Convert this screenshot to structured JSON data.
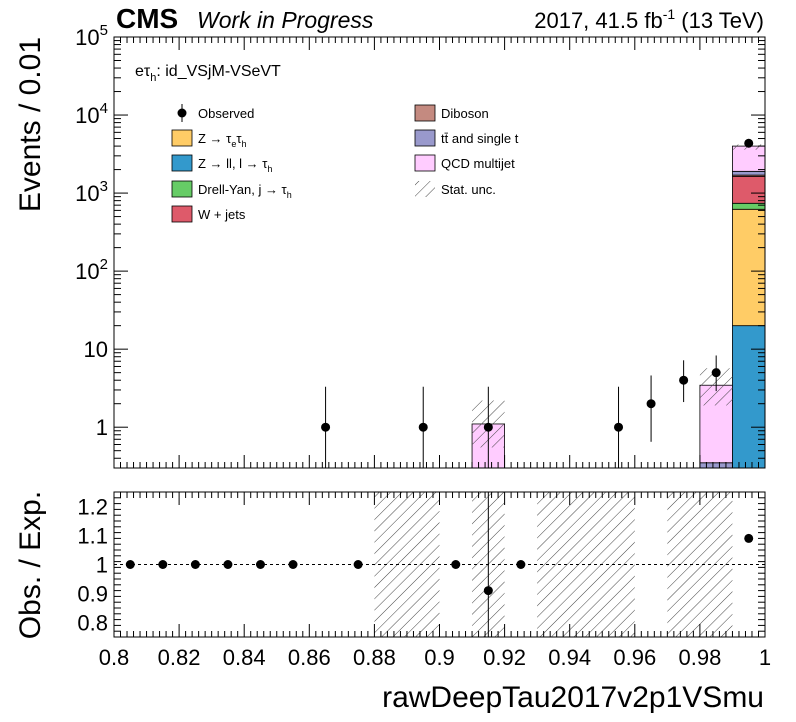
{
  "header": {
    "cms": "CMS",
    "status": "Work in Progress",
    "lumi_prefix": "2017, 41.5 fb",
    "lumi_exp": "-1",
    "lumi_suffix": " (13 TeV)"
  },
  "channel": {
    "particle": "eτ",
    "sub": "h",
    "rest": ": id_VSjM-VSeVT"
  },
  "colors": {
    "ztt": "#ffcc66",
    "zll": "#3399cc",
    "jfakes": "#66cc66",
    "wjets": "#de5a6a",
    "diboson": "#c48a80",
    "ttbar": "#9999cc",
    "qcd": "#ffccff",
    "data": "#000000"
  },
  "legend": [
    {
      "key": "data",
      "type": "marker",
      "text": "Observed",
      "sub": "",
      "tail": ""
    },
    {
      "key": "ztt",
      "type": "box",
      "text": "Z → τ",
      "sub": "e",
      "tail": "τ",
      "sub2": "h"
    },
    {
      "key": "zll",
      "type": "box",
      "text": "Z → ll, l → τ",
      "sub": "h",
      "tail": ""
    },
    {
      "key": "jfakes",
      "type": "box",
      "text": "Drell-Yan, j → τ",
      "sub": "h",
      "tail": ""
    },
    {
      "key": "wjets",
      "type": "box",
      "text": "W + jets",
      "sub": "",
      "tail": ""
    },
    {
      "key": "diboson",
      "type": "box",
      "text": "Diboson",
      "sub": "",
      "tail": ""
    },
    {
      "key": "ttbar",
      "type": "box",
      "text": "tt̄ and single t",
      "sub": "",
      "tail": ""
    },
    {
      "key": "qcd",
      "type": "box",
      "text": "QCD multijet",
      "sub": "",
      "tail": ""
    },
    {
      "key": "unc",
      "type": "hatch",
      "text": "Stat. unc.",
      "sub": "",
      "tail": ""
    }
  ],
  "chart_data": [
    {
      "type": "bar",
      "panel": "main",
      "ylabel": "Events / 0.01",
      "yscale": "log",
      "ylim": [
        0.3,
        100000
      ],
      "xlim": [
        0.8,
        1.0
      ],
      "yticks": [
        {
          "v": 1,
          "base": "1",
          "exp": ""
        },
        {
          "v": 10,
          "base": "10",
          "exp": ""
        },
        {
          "v": 100,
          "base": "10",
          "exp": "2"
        },
        {
          "v": 1000,
          "base": "10",
          "exp": "3"
        },
        {
          "v": 10000,
          "base": "10",
          "exp": "4"
        },
        {
          "v": 100000,
          "base": "10",
          "exp": "5"
        }
      ],
      "bin_edges": [
        0.8,
        0.81,
        0.82,
        0.83,
        0.84,
        0.85,
        0.86,
        0.87,
        0.88,
        0.89,
        0.9,
        0.91,
        0.92,
        0.93,
        0.94,
        0.95,
        0.96,
        0.97,
        0.98,
        0.99,
        1.0
      ],
      "stack_order": [
        "zll",
        "ztt",
        "jfakes",
        "wjets",
        "diboson",
        "ttbar",
        "qcd"
      ],
      "series": [
        {
          "name": "QCD multijet",
          "key": "qcd",
          "values": [
            0,
            0,
            0,
            0,
            0,
            0,
            0,
            0,
            0,
            0,
            0,
            1.1,
            0,
            0,
            0,
            0,
            0,
            0,
            3.1,
            2100
          ]
        },
        {
          "name": "tt̄ and single t",
          "key": "ttbar",
          "values": [
            0,
            0,
            0,
            0,
            0,
            0,
            0,
            0,
            0,
            0,
            0,
            0,
            0,
            0,
            0,
            0,
            0,
            0,
            0.35,
            200
          ]
        },
        {
          "name": "Diboson",
          "key": "diboson",
          "values": [
            0,
            0,
            0,
            0,
            0,
            0,
            0,
            0,
            0,
            0,
            0,
            0,
            0,
            0,
            0,
            0,
            0,
            0,
            0,
            60
          ]
        },
        {
          "name": "W + jets",
          "key": "wjets",
          "values": [
            0,
            0,
            0,
            0,
            0,
            0,
            0,
            0,
            0,
            0,
            0,
            0,
            0,
            0,
            0,
            0,
            0,
            0,
            0,
            900
          ]
        },
        {
          "name": "Drell-Yan, j → τh",
          "key": "jfakes",
          "values": [
            0,
            0,
            0,
            0,
            0,
            0,
            0,
            0,
            0,
            0,
            0,
            0,
            0,
            0,
            0,
            0,
            0,
            0,
            0,
            120
          ]
        },
        {
          "name": "Z → ll, l → τh",
          "key": "zll",
          "values": [
            0,
            0,
            0,
            0,
            0,
            0,
            0,
            0,
            0,
            0,
            0,
            0,
            0,
            0,
            0,
            0,
            0,
            0,
            0,
            20
          ]
        },
        {
          "name": "Z → τeτh",
          "key": "ztt",
          "values": [
            0,
            0,
            0,
            0,
            0,
            0,
            0,
            0,
            0,
            0,
            0,
            0,
            0,
            0,
            0,
            0,
            0,
            0,
            0,
            600
          ]
        }
      ],
      "stat_unc": [
        {
          "bin": 11,
          "low": 0.55,
          "high": 2.2
        },
        {
          "bin": 18,
          "low": 1.9,
          "high": 5.7
        },
        {
          "bin": 19,
          "low": 3600,
          "high": 4200
        }
      ],
      "observed": [
        {
          "x": 0.865,
          "y": 1,
          "lo": 0.3,
          "hi": 3.3
        },
        {
          "x": 0.895,
          "y": 1,
          "lo": 0.3,
          "hi": 3.3
        },
        {
          "x": 0.915,
          "y": 1,
          "lo": 0.3,
          "hi": 3.3
        },
        {
          "x": 0.955,
          "y": 1,
          "lo": 0.3,
          "hi": 3.3
        },
        {
          "x": 0.965,
          "y": 2,
          "lo": 0.65,
          "hi": 4.6
        },
        {
          "x": 0.975,
          "y": 4,
          "lo": 2.1,
          "hi": 7.2
        },
        {
          "x": 0.985,
          "y": 5,
          "lo": 2.9,
          "hi": 8.3
        },
        {
          "x": 0.995,
          "y": 4350,
          "lo": 4280,
          "hi": 4420
        }
      ]
    },
    {
      "type": "scatter",
      "panel": "ratio",
      "xlabel": "rawDeepTau2017v2p1VSmu",
      "ylabel": "Obs. / Exp.",
      "xlim": [
        0.8,
        1.0
      ],
      "ylim": [
        0.75,
        1.25
      ],
      "xticks": [
        "0.8",
        "0.82",
        "0.84",
        "0.86",
        "0.88",
        "0.9",
        "0.92",
        "0.94",
        "0.96",
        "0.98",
        "1"
      ],
      "yticks": [
        "0.8",
        "0.9",
        "1",
        "1.1",
        "1.2"
      ],
      "reference_line": 1.0,
      "hatched_ranges": [
        [
          0.88,
          0.9
        ],
        [
          0.91,
          0.92
        ],
        [
          0.93,
          0.96
        ],
        [
          0.97,
          0.99
        ]
      ],
      "points": [
        {
          "x": 0.805,
          "y": 1.0,
          "lo": 1.0,
          "hi": 1.0
        },
        {
          "x": 0.815,
          "y": 1.0,
          "lo": 1.0,
          "hi": 1.0
        },
        {
          "x": 0.825,
          "y": 1.0,
          "lo": 1.0,
          "hi": 1.0
        },
        {
          "x": 0.835,
          "y": 1.0,
          "lo": 1.0,
          "hi": 1.0
        },
        {
          "x": 0.845,
          "y": 1.0,
          "lo": 1.0,
          "hi": 1.0
        },
        {
          "x": 0.855,
          "y": 1.0,
          "lo": 1.0,
          "hi": 1.0
        },
        {
          "x": 0.875,
          "y": 1.0,
          "lo": 1.0,
          "hi": 1.0
        },
        {
          "x": 0.905,
          "y": 1.0,
          "lo": 1.0,
          "hi": 1.0
        },
        {
          "x": 0.915,
          "y": 0.91,
          "lo": 0.75,
          "hi": 1.25
        },
        {
          "x": 0.925,
          "y": 1.0,
          "lo": 1.0,
          "hi": 1.0
        },
        {
          "x": 0.995,
          "y": 1.09,
          "lo": 1.08,
          "hi": 1.1
        }
      ]
    }
  ]
}
